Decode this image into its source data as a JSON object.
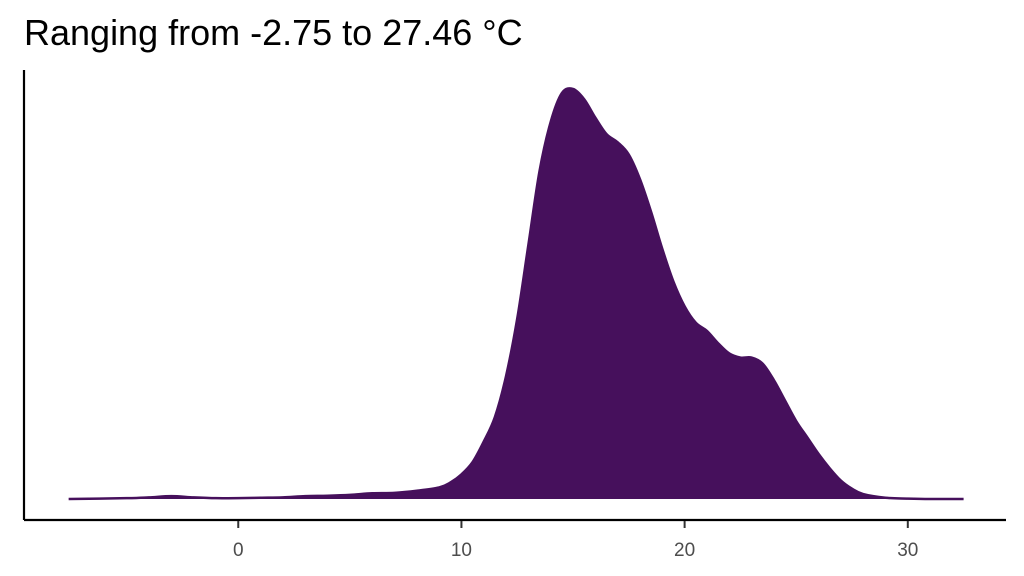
{
  "chart_data": {
    "type": "area",
    "title": "Ranging from -2.75 to 27.46 °C",
    "xlabel": "",
    "ylabel": "",
    "xlim": [
      -9.6,
      34.4
    ],
    "ylim": [
      0,
      1.0
    ],
    "x_ticks": [
      0,
      10,
      20,
      30
    ],
    "y_ticks": [],
    "grid": false,
    "legend": "none",
    "fill_color": "#46105C",
    "series": [
      {
        "x": [
          -7.6,
          -5.0,
          -4.0,
          -3.0,
          -2.0,
          -1.0,
          0.0,
          1.0,
          2.0,
          3.0,
          4.0,
          5.0,
          6.0,
          7.0,
          8.0,
          9.0,
          9.5,
          10.0,
          10.5,
          11.0,
          11.5,
          12.0,
          12.5,
          13.0,
          13.5,
          14.0,
          14.5,
          15.0,
          15.5,
          16.0,
          16.5,
          17.0,
          17.5,
          18.0,
          18.5,
          19.0,
          19.5,
          20.0,
          20.5,
          21.0,
          21.5,
          22.0,
          22.5,
          23.0,
          23.5,
          24.0,
          24.5,
          25.0,
          25.5,
          26.0,
          26.5,
          27.0,
          27.5,
          28.0,
          29.0,
          30.0,
          31.0,
          32.5
        ],
        "y": [
          0.0,
          0.002,
          0.004,
          0.007,
          0.004,
          0.002,
          0.002,
          0.003,
          0.004,
          0.007,
          0.008,
          0.01,
          0.014,
          0.015,
          0.02,
          0.028,
          0.04,
          0.06,
          0.09,
          0.14,
          0.2,
          0.3,
          0.44,
          0.62,
          0.8,
          0.92,
          0.99,
          1.0,
          0.975,
          0.93,
          0.89,
          0.87,
          0.84,
          0.78,
          0.7,
          0.61,
          0.53,
          0.47,
          0.43,
          0.41,
          0.38,
          0.355,
          0.345,
          0.345,
          0.33,
          0.29,
          0.24,
          0.19,
          0.15,
          0.11,
          0.075,
          0.045,
          0.025,
          0.012,
          0.003,
          0.001,
          0.0,
          0.0
        ]
      }
    ]
  }
}
